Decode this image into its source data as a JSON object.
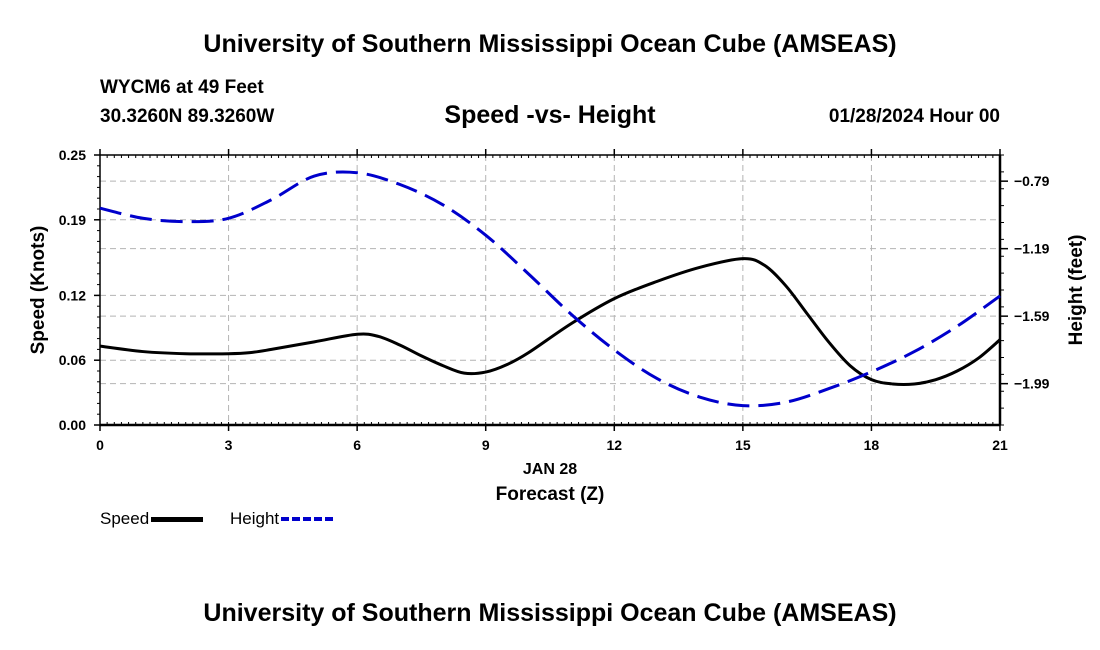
{
  "header": {
    "title": "University of Southern Mississippi Ocean Cube (AMSEAS)",
    "station": "WYCM6 at 49 Feet",
    "coords": "30.3260N  89.3260W",
    "subtitle": "Speed -vs- Height",
    "datetime": "01/28/2024 Hour 00"
  },
  "footer": {
    "title": "University of Southern Mississippi Ocean Cube (AMSEAS)"
  },
  "legend": {
    "speed_label": "Speed",
    "height_label": "Height"
  },
  "chart_data": {
    "type": "line",
    "title": "Speed -vs- Height",
    "xlabel": "Forecast (Z)",
    "xlabel_date": "JAN 28",
    "ylabel_left": "Speed (Knots)",
    "ylabel_right": "Height (feet)",
    "xlim": [
      0,
      21
    ],
    "ylim_left": [
      0,
      0.25
    ],
    "ylim_right": [
      -2.235,
      -0.635
    ],
    "x_ticks": [
      0,
      3,
      6,
      9,
      12,
      15,
      18,
      21
    ],
    "x_tick_labels": [
      "0",
      "3",
      "6",
      "9",
      "12",
      "15",
      "18",
      "21"
    ],
    "y_left_ticks": [
      0,
      0.06,
      0.12,
      0.19,
      0.25
    ],
    "y_left_tick_labels": [
      "0.00",
      "0.06",
      "0.12",
      "0.19",
      "0.25"
    ],
    "y_right_ticks": [
      -0.79,
      -1.19,
      -1.59,
      -1.99
    ],
    "y_right_tick_labels": [
      "−0.79",
      "−1.19",
      "−1.59",
      "−1.99"
    ],
    "grid": true,
    "legend_position": "bottom-left",
    "series": [
      {
        "name": "Speed",
        "axis": "left",
        "color": "#000000",
        "style": "solid",
        "x": [
          0,
          1,
          2,
          3,
          3.5,
          4,
          5,
          6,
          6.5,
          7,
          7.5,
          8,
          8.5,
          9,
          9.5,
          10,
          11,
          12,
          13,
          14,
          15,
          15.5,
          16,
          16.5,
          17,
          17.5,
          18,
          18.5,
          19,
          19.5,
          20,
          20.5,
          21
        ],
        "y": [
          0.073,
          0.068,
          0.066,
          0.066,
          0.067,
          0.07,
          0.077,
          0.084,
          0.082,
          0.074,
          0.064,
          0.055,
          0.048,
          0.049,
          0.056,
          0.067,
          0.094,
          0.117,
          0.133,
          0.146,
          0.154,
          0.148,
          0.129,
          0.103,
          0.077,
          0.055,
          0.042,
          0.038,
          0.038,
          0.042,
          0.05,
          0.062,
          0.079
        ]
      },
      {
        "name": "Height",
        "axis": "right",
        "color": "#0000cc",
        "style": "dashed",
        "x": [
          0,
          1,
          2,
          3,
          4,
          5,
          6,
          7,
          8,
          9,
          10,
          11,
          12,
          13,
          14,
          15,
          16,
          17,
          18,
          19,
          20,
          21
        ],
        "y": [
          -0.95,
          -1.01,
          -1.03,
          -1.01,
          -0.9,
          -0.76,
          -0.74,
          -0.81,
          -0.93,
          -1.11,
          -1.34,
          -1.58,
          -1.79,
          -1.96,
          -2.07,
          -2.12,
          -2.1,
          -2.02,
          -1.92,
          -1.8,
          -1.65,
          -1.47
        ]
      }
    ]
  }
}
